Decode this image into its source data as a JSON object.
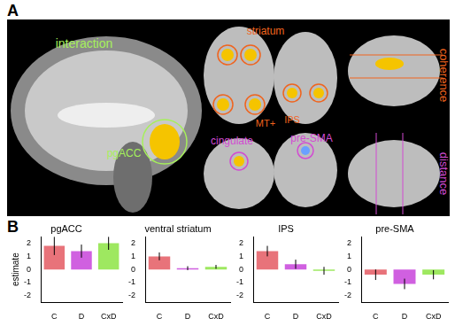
{
  "panel_labels": [
    "A",
    "B"
  ],
  "brain_figure": {
    "labels": [
      {
        "text": "interaction",
        "color": "#a6f05a"
      },
      {
        "text": "pgACC",
        "color": "#a6f05a"
      },
      {
        "text": "striatum",
        "color": "#f0641e"
      },
      {
        "text": "MT+",
        "color": "#f0641e"
      },
      {
        "text": "IPS",
        "color": "#f0641e"
      },
      {
        "text": "coherence",
        "color": "#f0641e"
      },
      {
        "text": "cingulate",
        "color": "#d24bd2"
      },
      {
        "text": "pre-SMA",
        "color": "#d24bd2"
      },
      {
        "text": "distance",
        "color": "#d24bd2"
      }
    ]
  },
  "chart_data": [
    {
      "type": "bar",
      "title": "pgACC",
      "ylabel": "estimate",
      "categories": [
        "C",
        "D",
        "CxD"
      ],
      "values": [
        1.8,
        1.4,
        2.0
      ],
      "errors": [
        0.7,
        0.5,
        0.5
      ],
      "colors": [
        "#e8737a",
        "#d060e0",
        "#9ee860"
      ],
      "ylim": [
        -2.5,
        2.5
      ],
      "yticks": [
        -2,
        -1,
        0,
        1,
        2
      ],
      "grid": false
    },
    {
      "type": "bar",
      "title": "ventral striatum",
      "categories": [
        "C",
        "D",
        "CxD"
      ],
      "values": [
        1.0,
        0.1,
        0.2
      ],
      "errors": [
        0.3,
        0.15,
        0.15
      ],
      "colors": [
        "#e8737a",
        "#d060e0",
        "#9ee860"
      ],
      "ylim": [
        -2.5,
        2.5
      ],
      "yticks": [
        -2,
        -1,
        0,
        1,
        2
      ],
      "grid": false
    },
    {
      "type": "bar",
      "title": "IPS",
      "categories": [
        "C",
        "D",
        "CxD"
      ],
      "values": [
        1.4,
        0.4,
        -0.1
      ],
      "errors": [
        0.4,
        0.35,
        0.3
      ],
      "colors": [
        "#e8737a",
        "#d060e0",
        "#9ee860"
      ],
      "ylim": [
        -2.5,
        2.5
      ],
      "yticks": [
        -2,
        -1,
        0,
        1,
        2
      ],
      "grid": false
    },
    {
      "type": "bar",
      "title": "pre-SMA",
      "categories": [
        "C",
        "D",
        "CxD"
      ],
      "values": [
        -0.4,
        -1.1,
        -0.4
      ],
      "errors": [
        0.4,
        0.4,
        0.35
      ],
      "colors": [
        "#e8737a",
        "#d060e0",
        "#9ee860"
      ],
      "ylim": [
        -2.5,
        2.5
      ],
      "yticks": [
        -2,
        -1,
        0,
        1,
        2
      ],
      "grid": false
    }
  ]
}
